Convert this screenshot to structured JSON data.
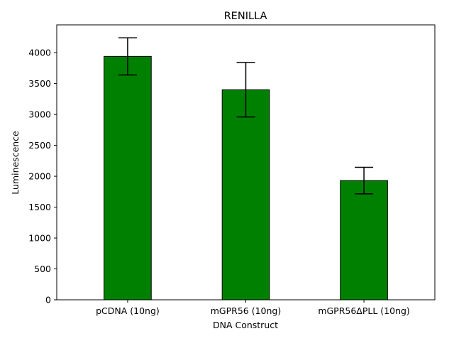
{
  "chart_data": {
    "type": "bar",
    "title": "RENILLA",
    "xlabel": "DNA Construct",
    "ylabel": "Luminescence",
    "categories": [
      "pCDNA (10ng)",
      "mGPR56 (10ng)",
      "mGPR56ΔPLL (10ng)"
    ],
    "values": [
      3940,
      3400,
      1930
    ],
    "error": [
      300,
      440,
      215
    ],
    "ylim": [
      0,
      4450
    ],
    "yticks": [
      0,
      500,
      1000,
      1500,
      2000,
      2500,
      3000,
      3500,
      4000
    ],
    "bar_color": "#008000",
    "edge_color": "#000000",
    "grid": false
  }
}
